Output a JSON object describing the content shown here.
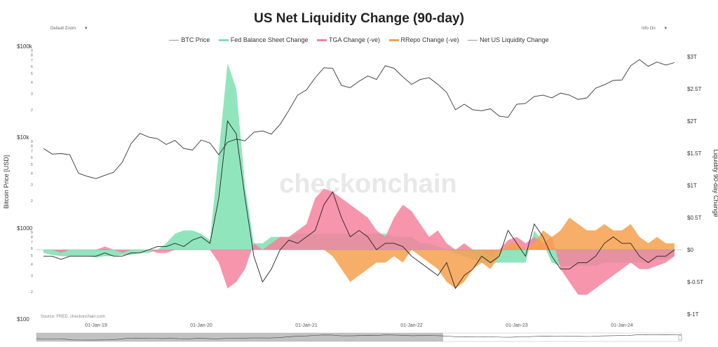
{
  "chart_data": {
    "type": "line",
    "title": "US Net Liquidity Change (90-day)",
    "controls": {
      "zoom": "Default Zoom",
      "info": "Info On",
      "dropdown_icon": "caret-down-icon"
    },
    "legend": [
      "BTC Price",
      "Fed Balance Sheet Change",
      "TGA Change (-ve)",
      "RRepo Change (-ve)",
      "Net US Liquidity Change"
    ],
    "legend_placement": "top",
    "colors": {
      "btc": "#333333",
      "fed": "#7ee0b0",
      "tga": "#f5839e",
      "rrepo": "#f6a04d",
      "net": "#222222"
    },
    "ylabel_left": "Bitcoin Price [USD]",
    "ylabel_right": "Liquidity 90-day Change",
    "left_axis": {
      "scale": "log",
      "range": [
        100,
        100000
      ],
      "ticks": [
        {
          "v": 100000,
          "label": "$100k"
        },
        {
          "v": 10000,
          "label": "$10k"
        },
        {
          "v": 1000,
          "label": "$1000"
        },
        {
          "v": 100,
          "label": "$100"
        }
      ],
      "minor_labels": [
        "9",
        "8",
        "7",
        "6",
        "5",
        "4",
        "3",
        "2"
      ]
    },
    "right_axis": {
      "range": [
        -1,
        3
      ],
      "unit": "trillion USD",
      "ticks": [
        {
          "v": 3,
          "label": "$3T"
        },
        {
          "v": 2.5,
          "label": "$2.5T"
        },
        {
          "v": 2,
          "label": "$2T"
        },
        {
          "v": 1.5,
          "label": "$1.5T"
        },
        {
          "v": 1,
          "label": "$1T"
        },
        {
          "v": 0.5,
          "label": "$0.5T"
        },
        {
          "v": 0,
          "label": "$0"
        },
        {
          "v": -0.5,
          "label": "$-0.5T"
        },
        {
          "v": -1,
          "label": "$-1T"
        }
      ]
    },
    "x_ticks": [
      "01-Jan-19",
      "01-Jan-20",
      "01-Jan-21",
      "01-Jan-22",
      "01-Jan-23",
      "01-Jan-24"
    ],
    "x_start": "2018-07",
    "x_step": "month",
    "grid": false,
    "watermark": "checkonchain",
    "source": "Source: FRED, checkonchain.com",
    "series": [
      {
        "name": "BTC Price",
        "axis": "left",
        "values": [
          7500,
          6500,
          6600,
          6400,
          4000,
          3700,
          3500,
          3800,
          4100,
          5300,
          8500,
          11000,
          10000,
          9600,
          8300,
          9200,
          7500,
          7200,
          9300,
          8600,
          6400,
          8800,
          9500,
          9100,
          11300,
          11700,
          10800,
          13800,
          19700,
          29000,
          33000,
          45000,
          58000,
          57000,
          37000,
          35000,
          41000,
          47000,
          43000,
          61000,
          57000,
          46000,
          38000,
          43000,
          45000,
          38000,
          31000,
          20000,
          23000,
          20000,
          19500,
          20500,
          17000,
          16500,
          23000,
          23500,
          28000,
          29000,
          27000,
          30500,
          29000,
          26000,
          27000,
          34500,
          37700,
          42000,
          42500,
          61000,
          71000,
          60000,
          67000,
          62000,
          66000
        ]
      },
      {
        "name": "Fed Balance Sheet Change",
        "axis": "right",
        "values": [
          -0.05,
          -0.08,
          -0.1,
          -0.1,
          -0.1,
          -0.1,
          -0.12,
          -0.1,
          -0.1,
          -0.08,
          -0.08,
          -0.05,
          -0.05,
          0,
          0.1,
          0.25,
          0.3,
          0.3,
          0.25,
          0.15,
          1.5,
          2.9,
          2.5,
          1.0,
          0.1,
          0.1,
          0.2,
          0.2,
          0.2,
          0.25,
          0.25,
          0.25,
          0.25,
          0.25,
          0.25,
          0.25,
          0.25,
          0.25,
          0.25,
          0.25,
          0.2,
          0.2,
          0.2,
          0.1,
          0.1,
          0.05,
          0,
          -0.05,
          -0.1,
          -0.15,
          -0.2,
          -0.2,
          -0.2,
          -0.2,
          -0.2,
          -0.2,
          0.3,
          0.1,
          -0.2,
          -0.25,
          -0.25,
          -0.25,
          -0.25,
          -0.25,
          -0.2,
          -0.2,
          -0.2,
          -0.2,
          -0.2,
          -0.2,
          -0.15,
          -0.15,
          -0.1
        ]
      },
      {
        "name": "TGA Change (-ve)",
        "axis": "right",
        "values": [
          0,
          0,
          -0.05,
          0,
          0,
          0,
          0,
          0.05,
          0,
          -0.05,
          0,
          0,
          0,
          -0.05,
          -0.05,
          0,
          0,
          0,
          0,
          0,
          -0.2,
          -0.6,
          -0.5,
          -0.3,
          0.1,
          0,
          0.1,
          0.2,
          0.2,
          0.3,
          0.4,
          0.8,
          0.95,
          0.9,
          0.8,
          0.7,
          0.6,
          0.5,
          0.3,
          0.2,
          0.5,
          0.7,
          0.6,
          0.4,
          0.2,
          0.3,
          0.1,
          0,
          0.1,
          0,
          0,
          -0.1,
          0,
          0.15,
          0.2,
          0.1,
          0.2,
          0.1,
          0.2,
          -0.3,
          -0.5,
          -0.7,
          -0.7,
          -0.6,
          -0.5,
          -0.4,
          -0.3,
          -0.2,
          -0.3,
          -0.3,
          -0.25,
          -0.2,
          -0.1
        ]
      },
      {
        "name": "RRepo Change (-ve)",
        "axis": "right",
        "values": [
          0,
          0,
          0,
          0,
          0,
          0,
          0,
          0,
          0,
          0,
          0,
          0,
          0,
          0,
          0,
          0,
          0,
          0,
          0,
          0,
          0,
          0,
          0,
          0,
          0,
          0,
          0,
          0,
          0,
          0,
          0,
          0,
          0,
          -0.1,
          -0.3,
          -0.5,
          -0.4,
          -0.3,
          -0.2,
          -0.2,
          -0.1,
          -0.2,
          0,
          -0.1,
          -0.2,
          -0.3,
          -0.5,
          -0.6,
          -0.5,
          -0.3,
          -0.2,
          -0.3,
          -0.1,
          0.1,
          0.1,
          0,
          0.1,
          0.3,
          0.2,
          0.3,
          0.5,
          0.4,
          0.3,
          0.3,
          0.4,
          0.3,
          0.3,
          0.4,
          0.2,
          0.1,
          0.2,
          0.1,
          0.1
        ]
      },
      {
        "name": "Net US Liquidity Change",
        "axis": "right",
        "values": [
          -0.1,
          -0.1,
          -0.15,
          -0.1,
          -0.1,
          -0.1,
          -0.1,
          -0.05,
          -0.1,
          -0.1,
          -0.05,
          -0.05,
          0,
          0.05,
          0.05,
          0.1,
          0.05,
          0.15,
          0.2,
          0.1,
          0.8,
          2.0,
          1.8,
          0.8,
          -0.1,
          -0.5,
          -0.3,
          0,
          0.15,
          0.1,
          0.2,
          0.3,
          0.7,
          0.9,
          0.5,
          0.2,
          0.3,
          0.2,
          0,
          0.1,
          0.1,
          0.05,
          -0.1,
          -0.2,
          -0.3,
          -0.4,
          -0.2,
          -0.6,
          -0.4,
          -0.3,
          -0.1,
          -0.2,
          -0.1,
          0.3,
          0.1,
          -0.1,
          0.4,
          0.2,
          -0.1,
          -0.3,
          -0.3,
          -0.2,
          -0.2,
          -0.1,
          0.1,
          0.2,
          0.1,
          0.1,
          -0.1,
          -0.2,
          -0.1,
          -0.1,
          0
        ]
      }
    ]
  }
}
